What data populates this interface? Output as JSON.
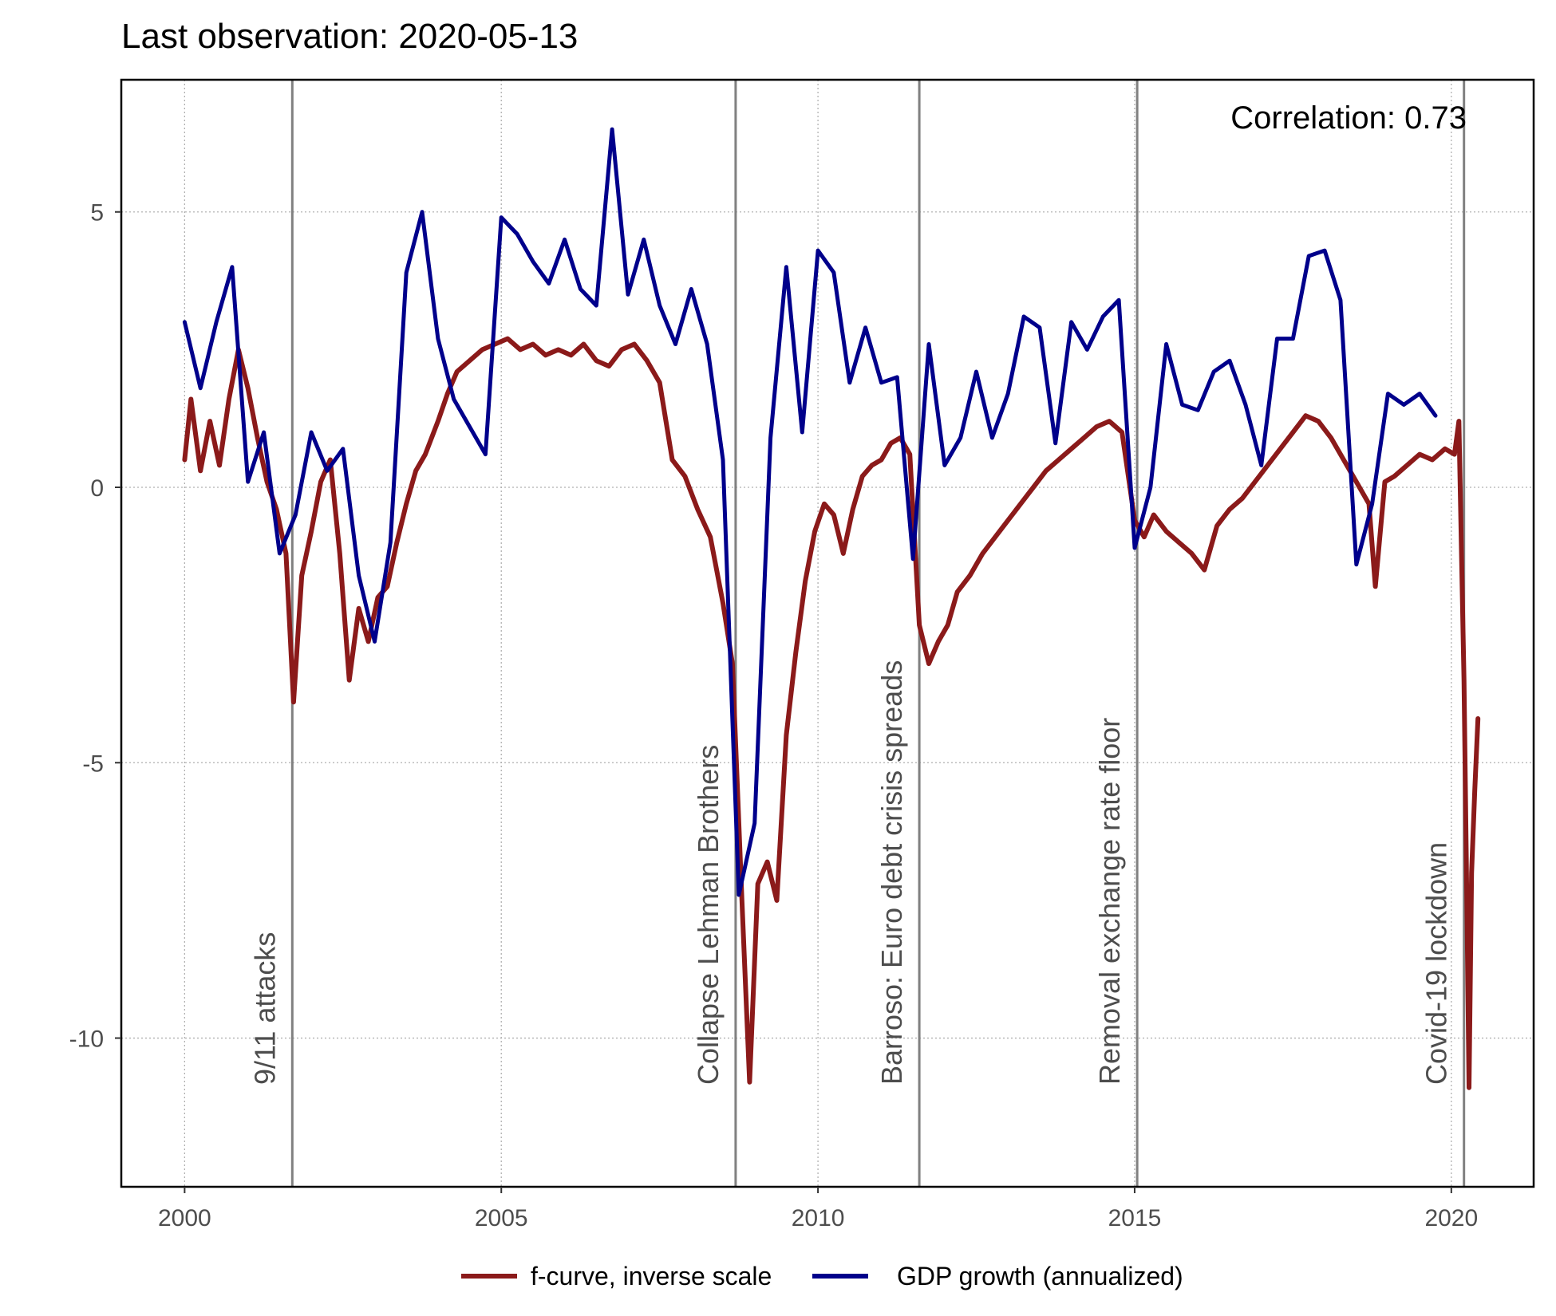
{
  "chart_data": {
    "type": "line",
    "title": "Last observation: 2020-05-13",
    "correlation_label": "Correlation: 0.73",
    "xlabel": "",
    "ylabel": "",
    "xlim": [
      1999.0,
      2021.3
    ],
    "ylim": [
      -12.7,
      7.4
    ],
    "x_ticks": [
      2000,
      2005,
      2010,
      2015,
      2020
    ],
    "x_tick_labels": [
      "2000",
      "2005",
      "2010",
      "2015",
      "2020"
    ],
    "y_ticks": [
      5,
      0,
      -5,
      -10
    ],
    "y_tick_labels": [
      "5",
      "0",
      "-5",
      "-10"
    ],
    "grid": true,
    "legend_position": "bottom",
    "events": [
      {
        "x": 2001.7,
        "label": "9/11 attacks"
      },
      {
        "x": 2008.7,
        "label": "Collapse Lehman Brothers"
      },
      {
        "x": 2011.6,
        "label": "Barroso: Euro debt crisis spreads"
      },
      {
        "x": 2015.04,
        "label": "Removal exchange rate floor"
      },
      {
        "x": 2020.2,
        "label": "Covid-19 lockdown"
      }
    ],
    "series": [
      {
        "name": "f-curve, inverse scale",
        "color": "#8b1a1a",
        "points": [
          [
            2000.0,
            0.5
          ],
          [
            2000.1,
            1.6
          ],
          [
            2000.25,
            0.3
          ],
          [
            2000.4,
            1.2
          ],
          [
            2000.55,
            0.4
          ],
          [
            2000.7,
            1.6
          ],
          [
            2000.85,
            2.5
          ],
          [
            2001.0,
            1.8
          ],
          [
            2001.15,
            0.9
          ],
          [
            2001.3,
            0.1
          ],
          [
            2001.45,
            -0.4
          ],
          [
            2001.6,
            -1.2
          ],
          [
            2001.72,
            -3.9
          ],
          [
            2001.85,
            -1.6
          ],
          [
            2002.0,
            -0.8
          ],
          [
            2002.15,
            0.1
          ],
          [
            2002.3,
            0.5
          ],
          [
            2002.45,
            -1.2
          ],
          [
            2002.6,
            -3.5
          ],
          [
            2002.75,
            -2.2
          ],
          [
            2002.9,
            -2.8
          ],
          [
            2003.05,
            -2.0
          ],
          [
            2003.2,
            -1.8
          ],
          [
            2003.35,
            -1.0
          ],
          [
            2003.5,
            -0.3
          ],
          [
            2003.65,
            0.3
          ],
          [
            2003.8,
            0.6
          ],
          [
            2004.0,
            1.2
          ],
          [
            2004.15,
            1.7
          ],
          [
            2004.3,
            2.1
          ],
          [
            2004.5,
            2.3
          ],
          [
            2004.7,
            2.5
          ],
          [
            2004.9,
            2.6
          ],
          [
            2005.1,
            2.7
          ],
          [
            2005.3,
            2.5
          ],
          [
            2005.5,
            2.6
          ],
          [
            2005.7,
            2.4
          ],
          [
            2005.9,
            2.5
          ],
          [
            2006.1,
            2.4
          ],
          [
            2006.3,
            2.6
          ],
          [
            2006.5,
            2.3
          ],
          [
            2006.7,
            2.2
          ],
          [
            2006.9,
            2.5
          ],
          [
            2007.1,
            2.6
          ],
          [
            2007.3,
            2.3
          ],
          [
            2007.5,
            1.9
          ],
          [
            2007.7,
            0.5
          ],
          [
            2007.9,
            0.2
          ],
          [
            2008.1,
            -0.4
          ],
          [
            2008.3,
            -0.9
          ],
          [
            2008.5,
            -2.1
          ],
          [
            2008.65,
            -3.2
          ],
          [
            2008.8,
            -7.5
          ],
          [
            2008.92,
            -10.8
          ],
          [
            2009.05,
            -7.2
          ],
          [
            2009.2,
            -6.8
          ],
          [
            2009.35,
            -7.5
          ],
          [
            2009.5,
            -4.5
          ],
          [
            2009.65,
            -3.0
          ],
          [
            2009.8,
            -1.7
          ],
          [
            2009.95,
            -0.8
          ],
          [
            2010.1,
            -0.3
          ],
          [
            2010.25,
            -0.5
          ],
          [
            2010.4,
            -1.2
          ],
          [
            2010.55,
            -0.4
          ],
          [
            2010.7,
            0.2
          ],
          [
            2010.85,
            0.4
          ],
          [
            2011.0,
            0.5
          ],
          [
            2011.15,
            0.8
          ],
          [
            2011.3,
            0.9
          ],
          [
            2011.45,
            0.6
          ],
          [
            2011.6,
            -2.5
          ],
          [
            2011.75,
            -3.2
          ],
          [
            2011.9,
            -2.8
          ],
          [
            2012.05,
            -2.5
          ],
          [
            2012.2,
            -1.9
          ],
          [
            2012.4,
            -1.6
          ],
          [
            2012.6,
            -1.2
          ],
          [
            2012.8,
            -0.9
          ],
          [
            2013.0,
            -0.6
          ],
          [
            2013.2,
            -0.3
          ],
          [
            2013.4,
            0.0
          ],
          [
            2013.6,
            0.3
          ],
          [
            2013.8,
            0.5
          ],
          [
            2014.0,
            0.7
          ],
          [
            2014.2,
            0.9
          ],
          [
            2014.4,
            1.1
          ],
          [
            2014.6,
            1.2
          ],
          [
            2014.8,
            1.0
          ],
          [
            2015.0,
            -0.6
          ],
          [
            2015.15,
            -0.9
          ],
          [
            2015.3,
            -0.5
          ],
          [
            2015.5,
            -0.8
          ],
          [
            2015.7,
            -1.0
          ],
          [
            2015.9,
            -1.2
          ],
          [
            2016.1,
            -1.5
          ],
          [
            2016.3,
            -0.7
          ],
          [
            2016.5,
            -0.4
          ],
          [
            2016.7,
            -0.2
          ],
          [
            2016.9,
            0.1
          ],
          [
            2017.1,
            0.4
          ],
          [
            2017.3,
            0.7
          ],
          [
            2017.5,
            1.0
          ],
          [
            2017.7,
            1.3
          ],
          [
            2017.9,
            1.2
          ],
          [
            2018.1,
            0.9
          ],
          [
            2018.3,
            0.5
          ],
          [
            2018.5,
            0.1
          ],
          [
            2018.7,
            -0.3
          ],
          [
            2018.8,
            -1.8
          ],
          [
            2018.95,
            0.1
          ],
          [
            2019.1,
            0.2
          ],
          [
            2019.3,
            0.4
          ],
          [
            2019.5,
            0.6
          ],
          [
            2019.7,
            0.5
          ],
          [
            2019.9,
            0.7
          ],
          [
            2020.05,
            0.6
          ],
          [
            2020.12,
            1.2
          ],
          [
            2020.2,
            -3.5
          ],
          [
            2020.25,
            -8.0
          ],
          [
            2020.28,
            -10.9
          ],
          [
            2020.32,
            -7.0
          ],
          [
            2020.37,
            -5.5
          ],
          [
            2020.42,
            -4.2
          ]
        ]
      },
      {
        "name": "GDP growth (annualized)",
        "color": "#00008b",
        "points": [
          [
            2000.0,
            3.0
          ],
          [
            2000.25,
            1.8
          ],
          [
            2000.5,
            3.0
          ],
          [
            2000.75,
            4.0
          ],
          [
            2001.0,
            0.1
          ],
          [
            2001.25,
            1.0
          ],
          [
            2001.5,
            -1.2
          ],
          [
            2001.75,
            -0.5
          ],
          [
            2002.0,
            1.0
          ],
          [
            2002.25,
            0.3
          ],
          [
            2002.5,
            0.7
          ],
          [
            2002.75,
            -1.6
          ],
          [
            2003.0,
            -2.8
          ],
          [
            2003.25,
            -1.0
          ],
          [
            2003.5,
            3.9
          ],
          [
            2003.75,
            5.0
          ],
          [
            2004.0,
            2.7
          ],
          [
            2004.25,
            1.6
          ],
          [
            2004.5,
            1.1
          ],
          [
            2004.75,
            0.6
          ],
          [
            2005.0,
            4.9
          ],
          [
            2005.25,
            4.6
          ],
          [
            2005.5,
            4.1
          ],
          [
            2005.75,
            3.7
          ],
          [
            2006.0,
            4.5
          ],
          [
            2006.25,
            3.6
          ],
          [
            2006.5,
            3.3
          ],
          [
            2006.75,
            6.5
          ],
          [
            2007.0,
            3.5
          ],
          [
            2007.25,
            4.5
          ],
          [
            2007.5,
            3.3
          ],
          [
            2007.75,
            2.6
          ],
          [
            2008.0,
            3.6
          ],
          [
            2008.25,
            2.6
          ],
          [
            2008.5,
            0.5
          ],
          [
            2008.75,
            -7.4
          ],
          [
            2009.0,
            -6.1
          ],
          [
            2009.25,
            0.9
          ],
          [
            2009.5,
            4.0
          ],
          [
            2009.75,
            1.0
          ],
          [
            2010.0,
            4.3
          ],
          [
            2010.25,
            3.9
          ],
          [
            2010.5,
            1.9
          ],
          [
            2010.75,
            2.9
          ],
          [
            2011.0,
            1.9
          ],
          [
            2011.25,
            2.0
          ],
          [
            2011.5,
            -1.3
          ],
          [
            2011.75,
            2.6
          ],
          [
            2012.0,
            0.4
          ],
          [
            2012.25,
            0.9
          ],
          [
            2012.5,
            2.1
          ],
          [
            2012.75,
            0.9
          ],
          [
            2013.0,
            1.7
          ],
          [
            2013.25,
            3.1
          ],
          [
            2013.5,
            2.9
          ],
          [
            2013.75,
            0.8
          ],
          [
            2014.0,
            3.0
          ],
          [
            2014.25,
            2.5
          ],
          [
            2014.5,
            3.1
          ],
          [
            2014.75,
            3.4
          ],
          [
            2015.0,
            -1.1
          ],
          [
            2015.25,
            0.0
          ],
          [
            2015.5,
            2.6
          ],
          [
            2015.75,
            1.5
          ],
          [
            2016.0,
            1.4
          ],
          [
            2016.25,
            2.1
          ],
          [
            2016.5,
            2.3
          ],
          [
            2016.75,
            1.5
          ],
          [
            2017.0,
            0.4
          ],
          [
            2017.25,
            2.7
          ],
          [
            2017.5,
            2.7
          ],
          [
            2017.75,
            4.2
          ],
          [
            2018.0,
            4.3
          ],
          [
            2018.25,
            3.4
          ],
          [
            2018.5,
            -1.4
          ],
          [
            2018.75,
            -0.3
          ],
          [
            2019.0,
            1.7
          ],
          [
            2019.25,
            1.5
          ],
          [
            2019.5,
            1.7
          ],
          [
            2019.75,
            1.3
          ]
        ]
      }
    ]
  }
}
